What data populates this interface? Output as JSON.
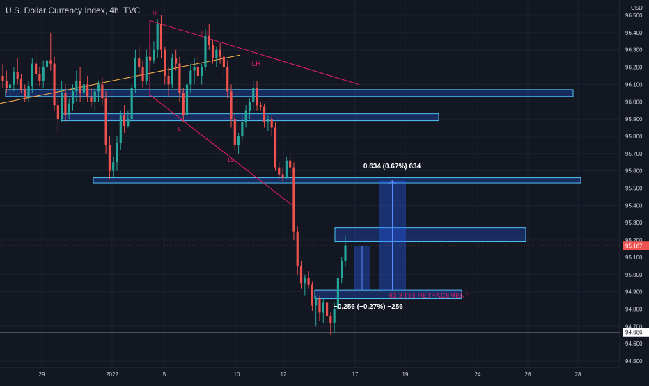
{
  "header": {
    "symbol_title": "U.S. Dollar Currency Index, 4h, TVC"
  },
  "price_axis": {
    "currency": "USD",
    "ticks": [
      "96.500",
      "96.400",
      "96.300",
      "96.200",
      "96.100",
      "96.000",
      "95.900",
      "95.800",
      "95.700",
      "95.600",
      "95.500",
      "95.400",
      "95.300",
      "95.200",
      "95.100",
      "95.000",
      "94.900",
      "94.800",
      "94.700",
      "94.600",
      "94.500"
    ]
  },
  "time_axis": {
    "labels": [
      "29",
      "2022",
      "5",
      "10",
      "12",
      "17",
      "19",
      "24",
      "26",
      "28"
    ]
  },
  "colors": {
    "background": "#131722",
    "bull": "#26a69a",
    "bear": "#ef5350",
    "zone": "#4fc3f7",
    "pitchfork": "#e91e63",
    "trend": "#ffb74d",
    "measure_fill": "#2962ff"
  },
  "price_labels": {
    "current": "95.167",
    "level": "94.666"
  },
  "annotations": {
    "swing_labels": [
      "H",
      "LH",
      "LH",
      "L",
      "LL"
    ],
    "measure_up": "0.634 (0.67%) 634",
    "measure_down": "−0.256 (−0.27%) −256",
    "fib_label": "61.8 FIB RETRACEMENT"
  },
  "chart_data": {
    "type": "candlestick",
    "title": "U.S. Dollar Currency Index, 4h, TVC",
    "ylabel": "USD",
    "ylim": [
      94.45,
      96.6
    ],
    "x_tick_labels": [
      "29",
      "2022",
      "5",
      "10",
      "12",
      "17",
      "19",
      "24",
      "26",
      "28"
    ],
    "horizontal_levels": [
      95.167,
      94.666
    ],
    "zones": [
      {
        "from": 96.03,
        "to": 96.07
      },
      {
        "from": 95.89,
        "to": 95.93
      },
      {
        "from": 95.53,
        "to": 95.56
      },
      {
        "from": 95.19,
        "to": 95.27
      },
      {
        "from": 94.86,
        "to": 94.91
      }
    ],
    "measure_up": {
      "from": 94.91,
      "to": 95.544,
      "change": 0.634,
      "percent": 0.67
    },
    "measure_down": {
      "from": 95.167,
      "to": 94.911,
      "change": -0.256,
      "percent": -0.27
    },
    "candles_ohlc": [
      [
        96.15,
        96.22,
        96.08,
        96.12
      ],
      [
        96.12,
        96.18,
        96.05,
        96.08
      ],
      [
        96.08,
        96.14,
        96.02,
        96.1
      ],
      [
        96.1,
        96.2,
        96.06,
        96.17
      ],
      [
        96.17,
        96.25,
        96.1,
        96.13
      ],
      [
        96.13,
        96.16,
        96.05,
        96.07
      ],
      [
        96.07,
        96.1,
        96.0,
        96.03
      ],
      [
        96.03,
        96.12,
        96.0,
        96.09
      ],
      [
        96.09,
        96.25,
        96.05,
        96.22
      ],
      [
        96.22,
        96.28,
        96.14,
        96.16
      ],
      [
        96.16,
        96.2,
        96.09,
        96.12
      ],
      [
        96.12,
        96.24,
        96.08,
        96.2
      ],
      [
        96.2,
        96.3,
        96.15,
        96.24
      ],
      [
        96.24,
        96.4,
        96.18,
        96.22
      ],
      [
        96.22,
        96.26,
        95.95,
        95.98
      ],
      [
        95.98,
        96.05,
        95.82,
        95.9
      ],
      [
        95.9,
        96.12,
        95.88,
        96.05
      ],
      [
        96.05,
        96.1,
        95.88,
        95.92
      ],
      [
        95.92,
        96.02,
        95.9,
        95.99
      ],
      [
        95.99,
        96.1,
        95.95,
        96.06
      ],
      [
        96.06,
        96.18,
        96.0,
        96.12
      ],
      [
        96.12,
        96.2,
        96.0,
        96.05
      ],
      [
        96.05,
        96.12,
        95.98,
        96.1
      ],
      [
        96.1,
        96.15,
        96.0,
        96.03
      ],
      [
        96.03,
        96.08,
        95.97,
        96.0
      ],
      [
        96.0,
        96.08,
        95.95,
        96.06
      ],
      [
        96.06,
        96.12,
        96.0,
        96.1
      ],
      [
        96.1,
        96.14,
        95.98,
        96.02
      ],
      [
        96.02,
        96.06,
        95.7,
        95.75
      ],
      [
        95.75,
        95.8,
        95.55,
        95.6
      ],
      [
        95.6,
        95.68,
        95.56,
        95.65
      ],
      [
        95.65,
        95.8,
        95.6,
        95.76
      ],
      [
        95.76,
        95.95,
        95.72,
        95.92
      ],
      [
        95.92,
        95.98,
        95.82,
        95.86
      ],
      [
        95.86,
        95.95,
        95.85,
        95.9
      ],
      [
        95.9,
        96.1,
        95.88,
        96.08
      ],
      [
        96.08,
        96.3,
        96.05,
        96.25
      ],
      [
        96.25,
        96.32,
        96.15,
        96.2
      ],
      [
        96.2,
        96.24,
        96.08,
        96.12
      ],
      [
        96.12,
        96.3,
        96.1,
        96.26
      ],
      [
        96.26,
        96.33,
        96.2,
        96.24
      ],
      [
        96.24,
        96.35,
        96.22,
        96.3
      ],
      [
        96.3,
        96.48,
        96.25,
        96.45
      ],
      [
        96.45,
        96.5,
        96.25,
        96.3
      ],
      [
        96.3,
        96.32,
        96.1,
        96.15
      ],
      [
        96.15,
        96.2,
        96.03,
        96.1
      ],
      [
        96.1,
        96.28,
        96.08,
        96.25
      ],
      [
        96.25,
        96.3,
        96.18,
        96.22
      ],
      [
        96.22,
        96.26,
        96.0,
        96.05
      ],
      [
        96.05,
        96.08,
        95.88,
        95.92
      ],
      [
        95.92,
        96.15,
        95.9,
        96.1
      ],
      [
        96.1,
        96.22,
        96.05,
        96.18
      ],
      [
        96.18,
        96.25,
        96.1,
        96.2
      ],
      [
        96.2,
        96.28,
        96.12,
        96.15
      ],
      [
        96.15,
        96.22,
        96.1,
        96.2
      ],
      [
        96.2,
        96.42,
        96.18,
        96.38
      ],
      [
        96.38,
        96.45,
        96.3,
        96.33
      ],
      [
        96.33,
        96.36,
        96.22,
        96.25
      ],
      [
        96.25,
        96.32,
        96.2,
        96.3
      ],
      [
        96.3,
        96.34,
        96.22,
        96.26
      ],
      [
        96.26,
        96.3,
        96.15,
        96.2
      ],
      [
        96.2,
        96.24,
        96.02,
        96.06
      ],
      [
        96.06,
        96.1,
        95.85,
        95.9
      ],
      [
        95.9,
        95.94,
        95.72,
        95.75
      ],
      [
        95.75,
        95.82,
        95.7,
        95.8
      ],
      [
        95.8,
        95.92,
        95.78,
        95.88
      ],
      [
        95.88,
        95.98,
        95.85,
        95.95
      ],
      [
        95.95,
        96.02,
        95.9,
        96.0
      ],
      [
        96.0,
        96.12,
        95.95,
        96.08
      ],
      [
        96.08,
        96.12,
        95.95,
        95.98
      ],
      [
        95.98,
        96.0,
        95.95,
        95.97
      ],
      [
        95.97,
        95.99,
        95.85,
        95.88
      ],
      [
        95.88,
        95.92,
        95.83,
        95.9
      ],
      [
        95.9,
        95.92,
        95.8,
        95.85
      ],
      [
        95.85,
        95.88,
        95.6,
        95.62
      ],
      [
        95.62,
        95.65,
        95.55,
        95.58
      ],
      [
        95.58,
        95.62,
        95.54,
        95.56
      ],
      [
        95.56,
        95.68,
        95.55,
        95.66
      ],
      [
        95.66,
        95.7,
        95.58,
        95.62
      ],
      [
        95.62,
        95.65,
        95.2,
        95.25
      ],
      [
        95.25,
        95.28,
        95.0,
        95.05
      ],
      [
        95.05,
        95.08,
        94.92,
        94.95
      ],
      [
        94.95,
        95.0,
        94.88,
        94.98
      ],
      [
        94.98,
        95.02,
        94.92,
        94.94
      ],
      [
        94.94,
        94.96,
        94.79,
        94.82
      ],
      [
        94.82,
        94.88,
        94.7,
        94.86
      ],
      [
        94.86,
        94.88,
        94.73,
        94.78
      ],
      [
        94.78,
        94.86,
        94.72,
        94.84
      ],
      [
        94.84,
        94.92,
        94.72,
        94.76
      ],
      [
        94.76,
        94.78,
        94.65,
        94.72
      ],
      [
        94.72,
        94.84,
        94.66,
        94.8
      ],
      [
        94.8,
        95.02,
        94.78,
        94.98
      ],
      [
        94.98,
        95.1,
        94.95,
        95.08
      ],
      [
        95.08,
        95.22,
        95.05,
        95.17
      ]
    ]
  }
}
